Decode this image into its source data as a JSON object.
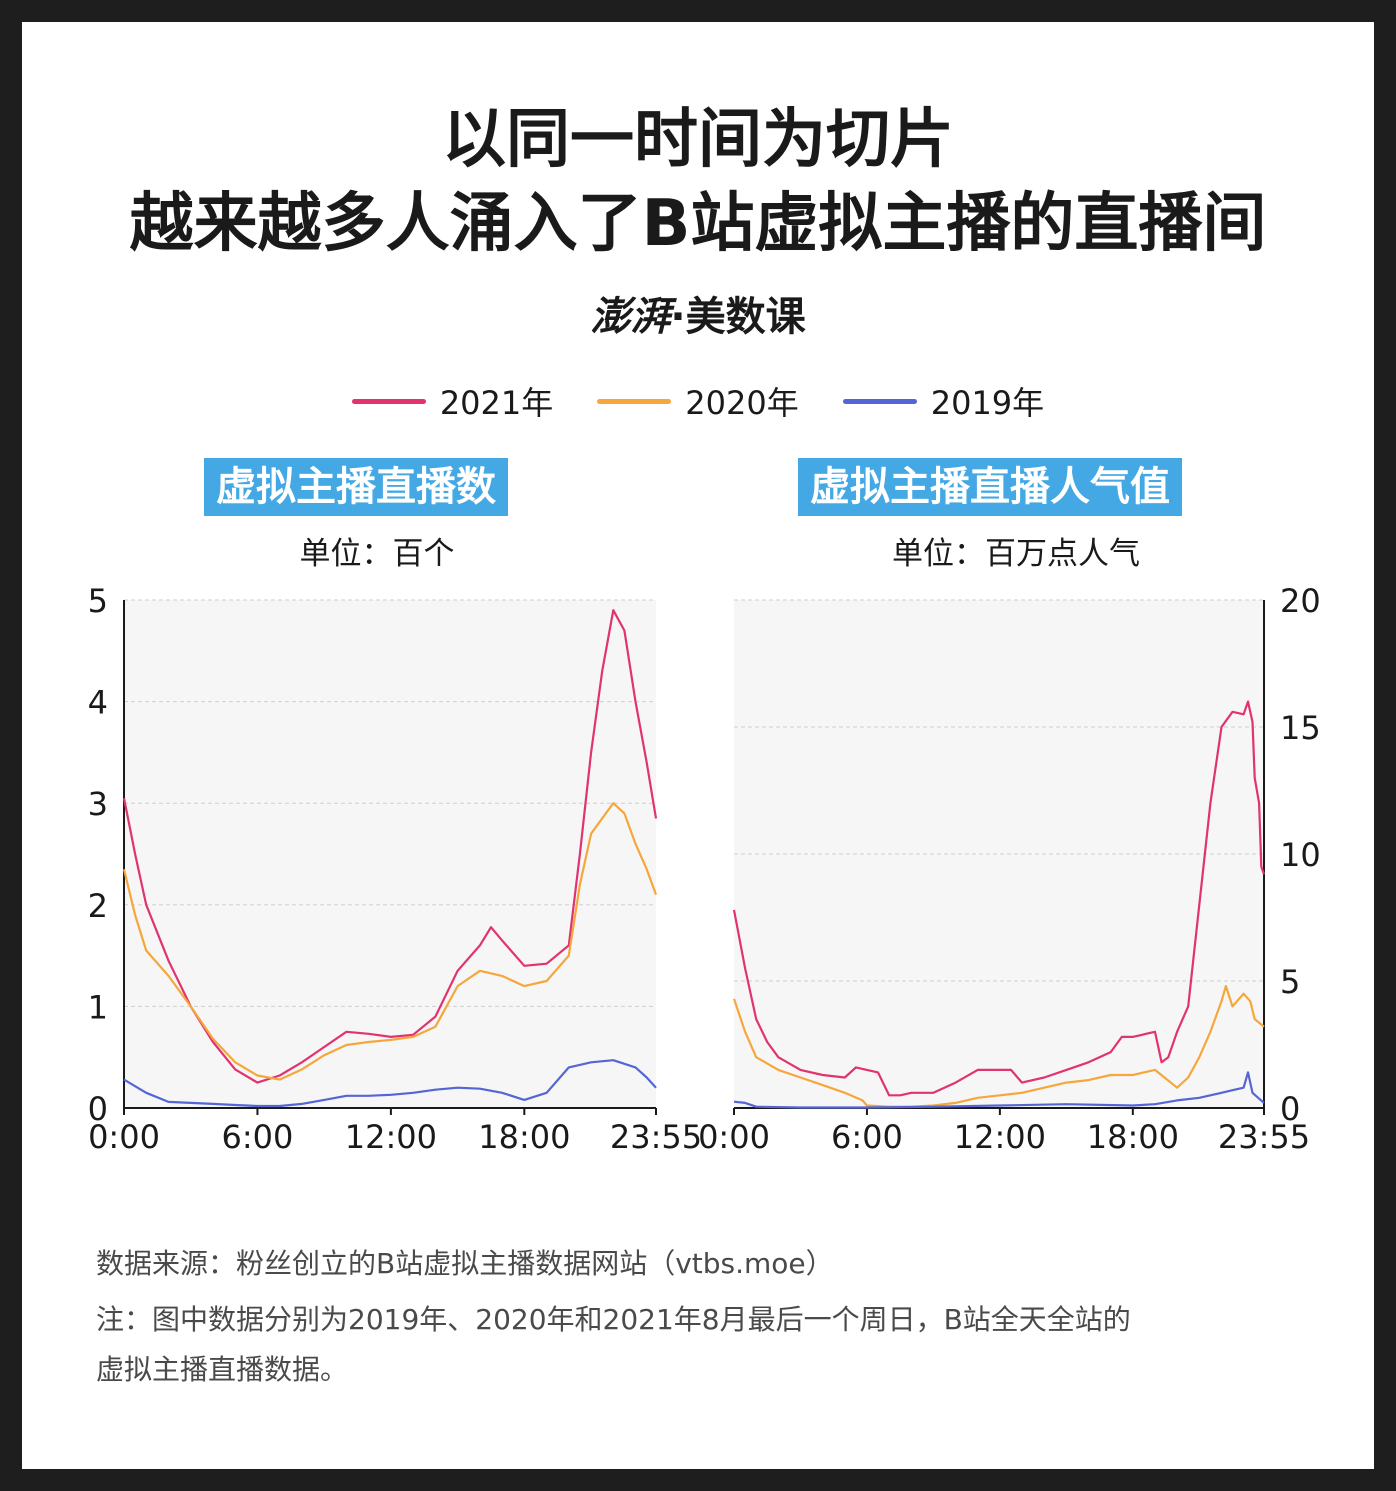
{
  "title": {
    "line1": "以同一时间为切片",
    "line2": "越来越多人涌入了B站虚拟主播的直播间"
  },
  "brand": {
    "logo": "澎湃",
    "separator": "·",
    "name": "美数课"
  },
  "legend": [
    {
      "label": "2021年",
      "color": "#e0336f"
    },
    {
      "label": "2020年",
      "color": "#f5a73b"
    },
    {
      "label": "2019年",
      "color": "#5565d6"
    }
  ],
  "chart_data": [
    {
      "type": "line",
      "title": "虚拟主播直播数",
      "unit": "单位：百个",
      "x_ticks": [
        "0:00",
        "6:00",
        "12:00",
        "18:00",
        "23:55"
      ],
      "x_tick_hours": [
        0,
        6,
        12,
        18,
        23.92
      ],
      "y_ticks": [
        "0",
        "1",
        "2",
        "3",
        "4",
        "5"
      ],
      "ylim": [
        0,
        5
      ],
      "y_axis_side": "left",
      "grid": "horizontal dashed",
      "series": [
        {
          "name": "2021年",
          "color": "#e0336f",
          "points": [
            [
              0,
              3.05
            ],
            [
              0.5,
              2.5
            ],
            [
              1,
              2.0
            ],
            [
              2,
              1.45
            ],
            [
              3,
              1.0
            ],
            [
              4,
              0.65
            ],
            [
              5,
              0.38
            ],
            [
              6,
              0.25
            ],
            [
              7,
              0.32
            ],
            [
              8,
              0.45
            ],
            [
              9,
              0.6
            ],
            [
              10,
              0.75
            ],
            [
              11,
              0.73
            ],
            [
              12,
              0.7
            ],
            [
              13,
              0.72
            ],
            [
              14,
              0.9
            ],
            [
              15,
              1.35
            ],
            [
              16,
              1.6
            ],
            [
              16.5,
              1.78
            ],
            [
              17,
              1.65
            ],
            [
              18,
              1.4
            ],
            [
              19,
              1.42
            ],
            [
              20,
              1.6
            ],
            [
              20.5,
              2.5
            ],
            [
              21,
              3.5
            ],
            [
              21.5,
              4.3
            ],
            [
              22,
              4.9
            ],
            [
              22.5,
              4.7
            ],
            [
              23,
              4.0
            ],
            [
              23.5,
              3.4
            ],
            [
              23.92,
              2.85
            ]
          ]
        },
        {
          "name": "2020年",
          "color": "#f5a73b",
          "points": [
            [
              0,
              2.35
            ],
            [
              0.5,
              1.9
            ],
            [
              1,
              1.55
            ],
            [
              2,
              1.3
            ],
            [
              3,
              1.0
            ],
            [
              4,
              0.68
            ],
            [
              5,
              0.45
            ],
            [
              6,
              0.32
            ],
            [
              7,
              0.28
            ],
            [
              8,
              0.38
            ],
            [
              9,
              0.52
            ],
            [
              10,
              0.62
            ],
            [
              11,
              0.65
            ],
            [
              12,
              0.67
            ],
            [
              13,
              0.7
            ],
            [
              14,
              0.8
            ],
            [
              15,
              1.2
            ],
            [
              16,
              1.35
            ],
            [
              17,
              1.3
            ],
            [
              18,
              1.2
            ],
            [
              19,
              1.25
            ],
            [
              20,
              1.5
            ],
            [
              20.5,
              2.2
            ],
            [
              21,
              2.7
            ],
            [
              21.5,
              2.85
            ],
            [
              22,
              3.0
            ],
            [
              22.5,
              2.9
            ],
            [
              23,
              2.6
            ],
            [
              23.5,
              2.35
            ],
            [
              23.92,
              2.1
            ]
          ]
        },
        {
          "name": "2019年",
          "color": "#5565d6",
          "points": [
            [
              0,
              0.28
            ],
            [
              1,
              0.15
            ],
            [
              2,
              0.06
            ],
            [
              3,
              0.05
            ],
            [
              4,
              0.04
            ],
            [
              5,
              0.03
            ],
            [
              6,
              0.02
            ],
            [
              7,
              0.02
            ],
            [
              8,
              0.04
            ],
            [
              9,
              0.08
            ],
            [
              10,
              0.12
            ],
            [
              11,
              0.12
            ],
            [
              12,
              0.13
            ],
            [
              13,
              0.15
            ],
            [
              14,
              0.18
            ],
            [
              15,
              0.2
            ],
            [
              16,
              0.19
            ],
            [
              17,
              0.15
            ],
            [
              18,
              0.08
            ],
            [
              19,
              0.15
            ],
            [
              20,
              0.4
            ],
            [
              21,
              0.45
            ],
            [
              22,
              0.47
            ],
            [
              23,
              0.4
            ],
            [
              23.5,
              0.3
            ],
            [
              23.92,
              0.2
            ]
          ]
        }
      ]
    },
    {
      "type": "line",
      "title": "虚拟主播直播人气值",
      "unit": "单位：百万点人气",
      "x_ticks": [
        "0:00",
        "6:00",
        "12:00",
        "18:00",
        "23:55"
      ],
      "x_tick_hours": [
        0,
        6,
        12,
        18,
        23.92
      ],
      "y_ticks": [
        "0",
        "5",
        "10",
        "15",
        "20"
      ],
      "ylim": [
        0,
        20
      ],
      "y_axis_side": "right",
      "grid": "horizontal dashed",
      "series": [
        {
          "name": "2021年",
          "color": "#e0336f",
          "points": [
            [
              0,
              7.8
            ],
            [
              0.5,
              5.5
            ],
            [
              1,
              3.5
            ],
            [
              1.5,
              2.6
            ],
            [
              2,
              2.0
            ],
            [
              3,
              1.5
            ],
            [
              4,
              1.3
            ],
            [
              5,
              1.2
            ],
            [
              5.5,
              1.6
            ],
            [
              6.5,
              1.4
            ],
            [
              7,
              0.5
            ],
            [
              7.5,
              0.5
            ],
            [
              8,
              0.6
            ],
            [
              9,
              0.6
            ],
            [
              10,
              1.0
            ],
            [
              11,
              1.5
            ],
            [
              12,
              1.5
            ],
            [
              12.5,
              1.5
            ],
            [
              13,
              1.0
            ],
            [
              14,
              1.2
            ],
            [
              15,
              1.5
            ],
            [
              16,
              1.8
            ],
            [
              17,
              2.2
            ],
            [
              17.5,
              2.8
            ],
            [
              18,
              2.8
            ],
            [
              19,
              3.0
            ],
            [
              19.3,
              1.8
            ],
            [
              19.6,
              2.0
            ],
            [
              20,
              3.0
            ],
            [
              20.5,
              4.0
            ],
            [
              21,
              8.0
            ],
            [
              21.5,
              12.0
            ],
            [
              22,
              15.0
            ],
            [
              22.5,
              15.6
            ],
            [
              23,
              15.5
            ],
            [
              23.2,
              16.0
            ],
            [
              23.4,
              15.2
            ],
            [
              23.5,
              13.0
            ],
            [
              23.7,
              12.0
            ],
            [
              23.8,
              9.5
            ],
            [
              23.92,
              9.2
            ]
          ]
        },
        {
          "name": "2020年",
          "color": "#f5a73b",
          "points": [
            [
              0,
              4.3
            ],
            [
              0.5,
              3.0
            ],
            [
              1,
              2.0
            ],
            [
              2,
              1.5
            ],
            [
              3,
              1.2
            ],
            [
              4,
              0.9
            ],
            [
              5,
              0.6
            ],
            [
              5.8,
              0.3
            ],
            [
              6,
              0.1
            ],
            [
              7,
              0.05
            ],
            [
              8,
              0.05
            ],
            [
              9,
              0.1
            ],
            [
              10,
              0.2
            ],
            [
              11,
              0.4
            ],
            [
              12,
              0.5
            ],
            [
              13,
              0.6
            ],
            [
              14,
              0.8
            ],
            [
              15,
              1.0
            ],
            [
              16,
              1.1
            ],
            [
              17,
              1.3
            ],
            [
              18,
              1.3
            ],
            [
              19,
              1.5
            ],
            [
              20,
              0.8
            ],
            [
              20.5,
              1.2
            ],
            [
              21,
              2.0
            ],
            [
              21.5,
              3.0
            ],
            [
              22,
              4.2
            ],
            [
              22.2,
              4.8
            ],
            [
              22.5,
              4.0
            ],
            [
              23,
              4.5
            ],
            [
              23.3,
              4.2
            ],
            [
              23.5,
              3.5
            ],
            [
              23.92,
              3.2
            ]
          ]
        },
        {
          "name": "2019年",
          "color": "#5565d6",
          "points": [
            [
              0,
              0.25
            ],
            [
              0.5,
              0.2
            ],
            [
              1,
              0.05
            ],
            [
              3,
              0.02
            ],
            [
              6,
              0.02
            ],
            [
              9,
              0.05
            ],
            [
              12,
              0.1
            ],
            [
              15,
              0.15
            ],
            [
              18,
              0.1
            ],
            [
              19,
              0.15
            ],
            [
              20,
              0.3
            ],
            [
              21,
              0.4
            ],
            [
              22,
              0.6
            ],
            [
              22.5,
              0.7
            ],
            [
              23,
              0.8
            ],
            [
              23.2,
              1.4
            ],
            [
              23.4,
              0.6
            ],
            [
              23.92,
              0.2
            ]
          ]
        }
      ]
    }
  ],
  "footer": {
    "source": "数据来源：粉丝创立的B站虚拟主播数据网站（vtbs.moe）",
    "note_line1": "注：图中数据分别为2019年、2020年和2021年8月最后一个周日，B站全天全站的",
    "note_line2": "虚拟主播直播数据。"
  }
}
